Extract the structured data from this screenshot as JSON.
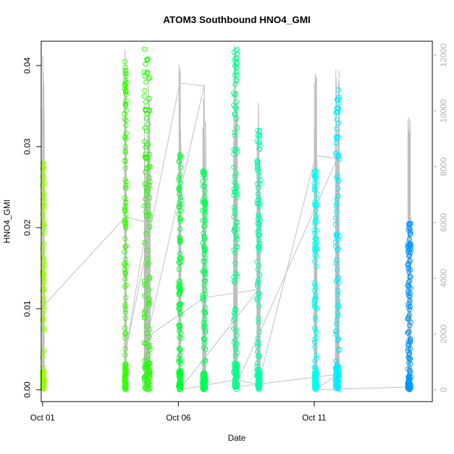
{
  "chart_data": {
    "type": "scatter",
    "title": "ATOM3 Southbound HNO4_GMI",
    "xlabel": "Date",
    "ylabel": "HNO4_GMI",
    "x_ticks": [
      {
        "day": 1,
        "label": "Oct 01"
      },
      {
        "day": 6,
        "label": "Oct 06"
      },
      {
        "day": 11,
        "label": "Oct 11"
      }
    ],
    "x_range_days": [
      0.95,
      15.35
    ],
    "ylim": [
      0,
      0.043
    ],
    "y_ticks": [
      0.0,
      0.01,
      0.02,
      0.03,
      0.04
    ],
    "y_tick_labels": [
      "0.00",
      "0.01",
      "0.02",
      "0.03",
      "0.04"
    ],
    "y2_range": [
      0,
      12500
    ],
    "y2_ticks": [
      0,
      2000,
      4000,
      6000,
      8000,
      10000,
      12000
    ],
    "y2_tick_labels": [
      "0",
      "2000",
      "4000",
      "6000",
      "8000",
      "10000",
      "12000"
    ],
    "altitude_line_color": "#bebebe",
    "grid": false,
    "flights": [
      {
        "day": 1.03,
        "width": 0.06,
        "ymin": 0.0,
        "ymax": 0.028,
        "alt_max": 12000,
        "color": "#99ff00"
      },
      {
        "day": 4.05,
        "width": 0.06,
        "ymin": 0.0,
        "ymax": 0.0405,
        "alt_max": 12400,
        "color": "#33ff00"
      },
      {
        "day": 4.85,
        "width": 0.22,
        "ymin": 0.0,
        "ymax": 0.042,
        "alt_max": 12400,
        "color": "#22ff00"
      },
      {
        "day": 6.05,
        "width": 0.08,
        "ymin": 0.0,
        "ymax": 0.029,
        "alt_max": 11700,
        "color": "#00ff33"
      },
      {
        "day": 6.95,
        "width": 0.12,
        "ymin": 0.0,
        "ymax": 0.027,
        "alt_max": 11000,
        "color": "#00ff55"
      },
      {
        "day": 8.1,
        "width": 0.14,
        "ymin": 0.0,
        "ymax": 0.042,
        "alt_max": 12400,
        "color": "#00ff88"
      },
      {
        "day": 8.95,
        "width": 0.12,
        "ymin": 0.0,
        "ymax": 0.032,
        "alt_max": 10500,
        "color": "#00ffaa"
      },
      {
        "day": 11.05,
        "width": 0.1,
        "ymin": 0.0,
        "ymax": 0.027,
        "alt_max": 11800,
        "color": "#00ffee"
      },
      {
        "day": 11.85,
        "width": 0.14,
        "ymin": 0.0,
        "ymax": 0.037,
        "alt_max": 11500,
        "color": "#00eeff"
      },
      {
        "day": 14.5,
        "width": 0.12,
        "ymin": 0.0,
        "ymax": 0.0205,
        "alt_max": 10000,
        "color": "#0099ff"
      }
    ],
    "transit_line": [
      {
        "day": 1.03,
        "alt": 3000
      },
      {
        "day": 4.05,
        "alt": 6200
      },
      {
        "day": 4.85,
        "alt": 6000
      },
      {
        "day": 4.05,
        "alt": 1300
      },
      {
        "day": 6.05,
        "alt": 11000
      },
      {
        "day": 6.95,
        "alt": 10900
      },
      {
        "day": 4.85,
        "alt": 1900
      },
      {
        "day": 6.95,
        "alt": 3300
      },
      {
        "day": 8.95,
        "alt": 3600
      },
      {
        "day": 6.05,
        "alt": 0
      },
      {
        "day": 8.1,
        "alt": 350
      },
      {
        "day": 8.95,
        "alt": 200
      },
      {
        "day": 11.05,
        "alt": 8400
      },
      {
        "day": 11.85,
        "alt": 8300
      },
      {
        "day": 8.1,
        "alt": 100
      },
      {
        "day": 11.85,
        "alt": 550
      },
      {
        "day": 11.05,
        "alt": 0
      },
      {
        "day": 14.5,
        "alt": 100
      }
    ]
  }
}
